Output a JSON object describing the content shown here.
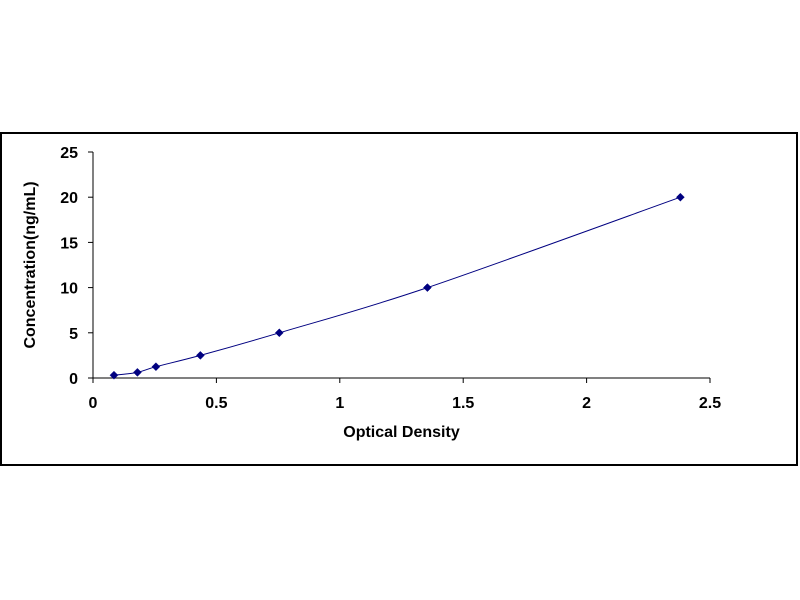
{
  "chart_data": {
    "type": "scatter",
    "title": "",
    "xlabel": "Optical Density",
    "ylabel": "Concentration(ng/mL)",
    "xlim": [
      0,
      2.5
    ],
    "ylim": [
      0,
      25
    ],
    "x_ticks": [
      0,
      0.5,
      1,
      1.5,
      2,
      2.5
    ],
    "x_tick_labels": [
      "0",
      "0.5",
      "1",
      "1.5",
      "2",
      "2.5"
    ],
    "y_ticks": [
      0,
      5,
      10,
      15,
      20,
      25
    ],
    "y_tick_labels": [
      "0",
      "5",
      "10",
      "15",
      "20",
      "25"
    ],
    "grid": false,
    "legend": "none",
    "trendline": "smooth curve through points",
    "series": [
      {
        "x": [
          0.085,
          0.18,
          0.255,
          0.435,
          0.755,
          1.355,
          2.38
        ],
        "y": [
          0.31,
          0.625,
          1.25,
          2.5,
          5,
          10,
          20
        ],
        "color": "#000080",
        "marker": "diamond"
      }
    ]
  }
}
